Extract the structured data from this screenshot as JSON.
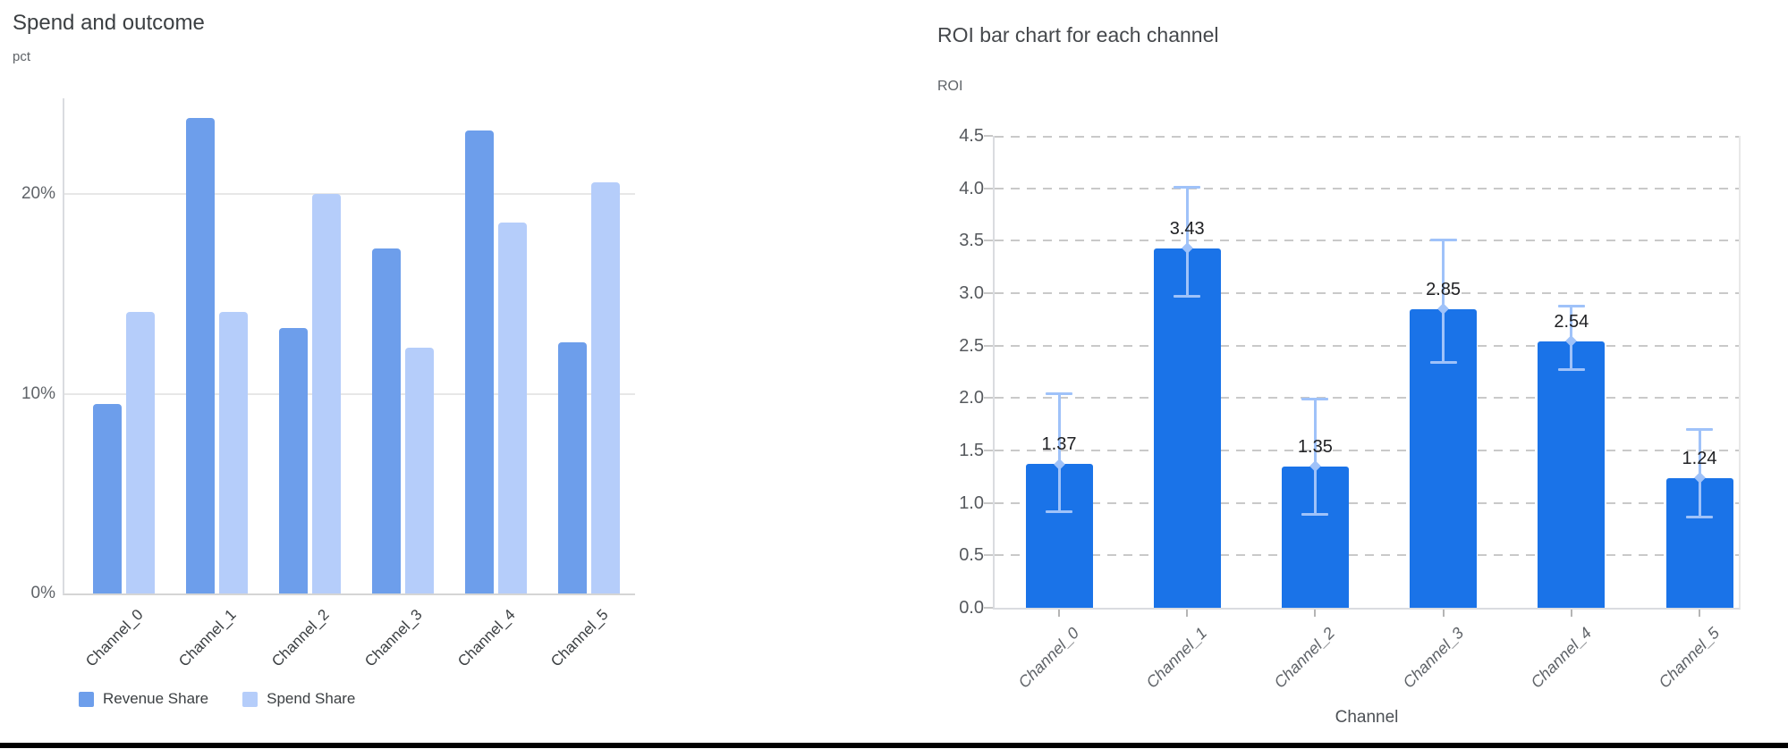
{
  "page": {
    "background": "#ffffff",
    "bottom_edge_color": "#000000"
  },
  "chart_data": [
    {
      "type": "bar",
      "title": "Spend and outcome",
      "ylabel": "pct",
      "xlabel": "",
      "categories": [
        "Channel_0",
        "Channel_1",
        "Channel_2",
        "Channel_3",
        "Channel_4",
        "Channel_5"
      ],
      "series": [
        {
          "name": "Revenue Share",
          "color": "#6d9eeb",
          "values": [
            9.5,
            23.8,
            13.3,
            17.3,
            23.2,
            12.6
          ]
        },
        {
          "name": "Spend Share",
          "color": "#b5cdfa",
          "values": [
            14.1,
            14.1,
            20.0,
            12.3,
            18.6,
            20.6
          ]
        }
      ],
      "unit": "%",
      "ylim": [
        0,
        24.8
      ],
      "yticks": [
        {
          "value": 0,
          "label": "0%"
        },
        {
          "value": 10,
          "label": "10%"
        },
        {
          "value": 20,
          "label": "20%"
        }
      ],
      "grid": "solid",
      "legend_position": "bottom"
    },
    {
      "type": "bar",
      "title": "ROI bar chart for each channel",
      "ylabel": "ROI",
      "xlabel": "Channel",
      "categories": [
        "Channel_0",
        "Channel_1",
        "Channel_2",
        "Channel_3",
        "Channel_4",
        "Channel_5"
      ],
      "values": [
        1.37,
        3.43,
        1.35,
        2.85,
        2.54,
        1.24
      ],
      "data_labels": [
        "1.37",
        "3.43",
        "1.35",
        "2.85",
        "2.54",
        "1.24"
      ],
      "error_low": [
        0.9,
        2.96,
        0.88,
        2.33,
        2.26,
        0.85
      ],
      "error_high": [
        2.05,
        4.02,
        2.0,
        3.52,
        2.89,
        1.71
      ],
      "bar_color": "#1a73e8",
      "error_color": "#9fc2f9",
      "ylim": [
        0,
        4.5
      ],
      "yticks": [
        {
          "value": 0,
          "label": "0.0"
        },
        {
          "value": 0.5,
          "label": "0.5"
        },
        {
          "value": 1,
          "label": "1.0"
        },
        {
          "value": 1.5,
          "label": "1.5"
        },
        {
          "value": 2,
          "label": "2.0"
        },
        {
          "value": 2.5,
          "label": "2.5"
        },
        {
          "value": 3,
          "label": "3.0"
        },
        {
          "value": 3.5,
          "label": "3.5"
        },
        {
          "value": 4,
          "label": "4.0"
        },
        {
          "value": 4.5,
          "label": "4.5"
        }
      ],
      "grid": "dashed",
      "legend_position": "none"
    }
  ]
}
